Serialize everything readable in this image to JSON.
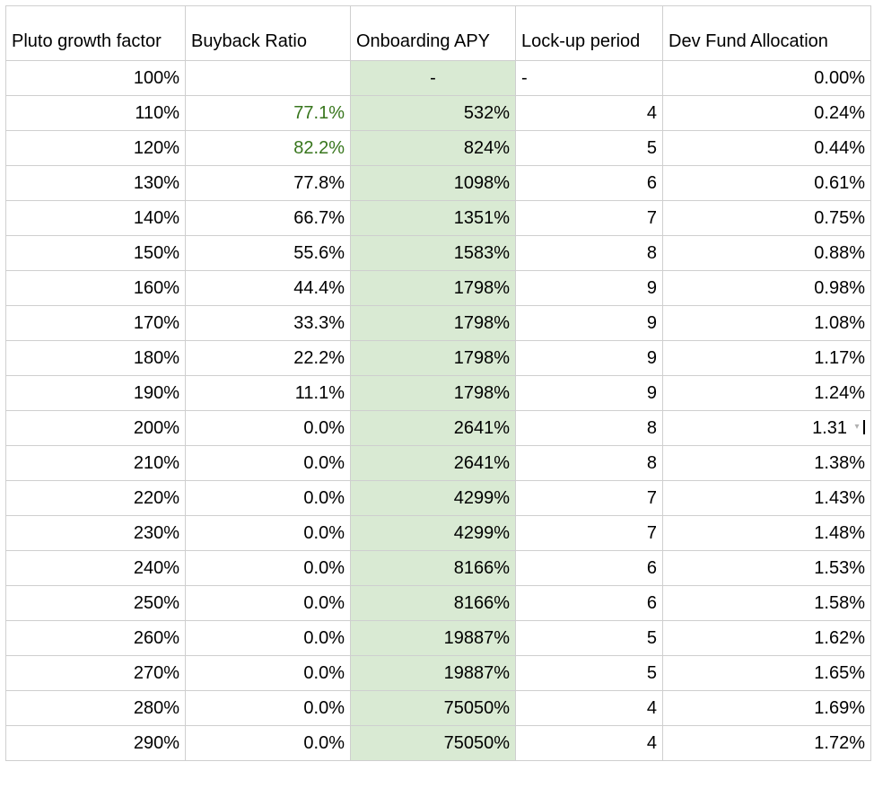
{
  "headers": [
    "Pluto growth factor",
    "Buyback Ratio",
    "Onboarding APY",
    "Lock-up period",
    "Dev Fund Allocation"
  ],
  "rows": [
    [
      "100%",
      "",
      "-",
      "-",
      "0.00%"
    ],
    [
      "110%",
      "77.1%",
      "532%",
      "4",
      "0.24%"
    ],
    [
      "120%",
      "82.2%",
      "824%",
      "5",
      "0.44%"
    ],
    [
      "130%",
      "77.8%",
      "1098%",
      "6",
      "0.61%"
    ],
    [
      "140%",
      "66.7%",
      "1351%",
      "7",
      "0.75%"
    ],
    [
      "150%",
      "55.6%",
      "1583%",
      "8",
      "0.88%"
    ],
    [
      "160%",
      "44.4%",
      "1798%",
      "9",
      "0.98%"
    ],
    [
      "170%",
      "33.3%",
      "1798%",
      "9",
      "1.08%"
    ],
    [
      "180%",
      "22.2%",
      "1798%",
      "9",
      "1.17%"
    ],
    [
      "190%",
      "11.1%",
      "1798%",
      "9",
      "1.24%"
    ],
    [
      "200%",
      "0.0%",
      "2641%",
      "8",
      "1.31"
    ],
    [
      "210%",
      "0.0%",
      "2641%",
      "8",
      "1.38%"
    ],
    [
      "220%",
      "0.0%",
      "4299%",
      "7",
      "1.43%"
    ],
    [
      "230%",
      "0.0%",
      "4299%",
      "7",
      "1.48%"
    ],
    [
      "240%",
      "0.0%",
      "8166%",
      "6",
      "1.53%"
    ],
    [
      "250%",
      "0.0%",
      "8166%",
      "6",
      "1.58%"
    ],
    [
      "260%",
      "0.0%",
      "19887%",
      "5",
      "1.62%"
    ],
    [
      "270%",
      "0.0%",
      "19887%",
      "5",
      "1.65%"
    ],
    [
      "280%",
      "0.0%",
      "75050%",
      "4",
      "1.69%"
    ],
    [
      "290%",
      "0.0%",
      "75050%",
      "4",
      "1.72%"
    ]
  ],
  "green_cells": [
    [
      1,
      1
    ],
    [
      2,
      1
    ]
  ],
  "selected_row": 10,
  "cursor_col": 3,
  "dropdown_icon": "chevron-down-icon",
  "colors": {
    "apy_fill": "#d9ead3",
    "green_text": "#38761d",
    "grid": "#cfcfcf"
  }
}
